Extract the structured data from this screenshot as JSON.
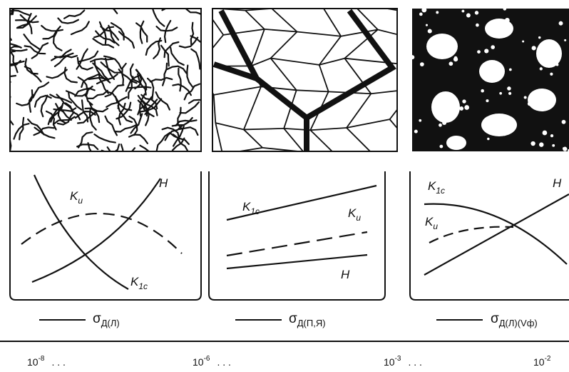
{
  "panels": [
    {
      "curve_labels": [
        {
          "symbol": "K",
          "sub": "и"
        },
        {
          "symbol": "H"
        },
        {
          "symbol": "K",
          "sub": "1c"
        }
      ],
      "legend": {
        "symbol": "σ",
        "sub": "Д(Л)"
      }
    },
    {
      "curve_labels": [
        {
          "symbol": "K",
          "sub": "1c"
        },
        {
          "symbol": "K",
          "sub": "и"
        },
        {
          "symbol": "H"
        }
      ],
      "legend": {
        "symbol": "σ",
        "sub": "Д(П,Я)"
      }
    },
    {
      "curve_labels": [
        {
          "symbol": "K",
          "sub": "1c"
        },
        {
          "symbol": "H"
        },
        {
          "symbol": "K",
          "sub": "и"
        }
      ],
      "legend": {
        "symbol": "σ",
        "sub": "Д(Л)(Vф)"
      }
    }
  ],
  "scale": [
    {
      "base": "10",
      "exp": "-8",
      "dots": ". . ."
    },
    {
      "base": "10",
      "exp": "-6",
      "dots": ". . ."
    },
    {
      "base": "10",
      "exp": "-3",
      "dots": ". . ."
    },
    {
      "base": "10",
      "exp": "-2"
    }
  ]
}
